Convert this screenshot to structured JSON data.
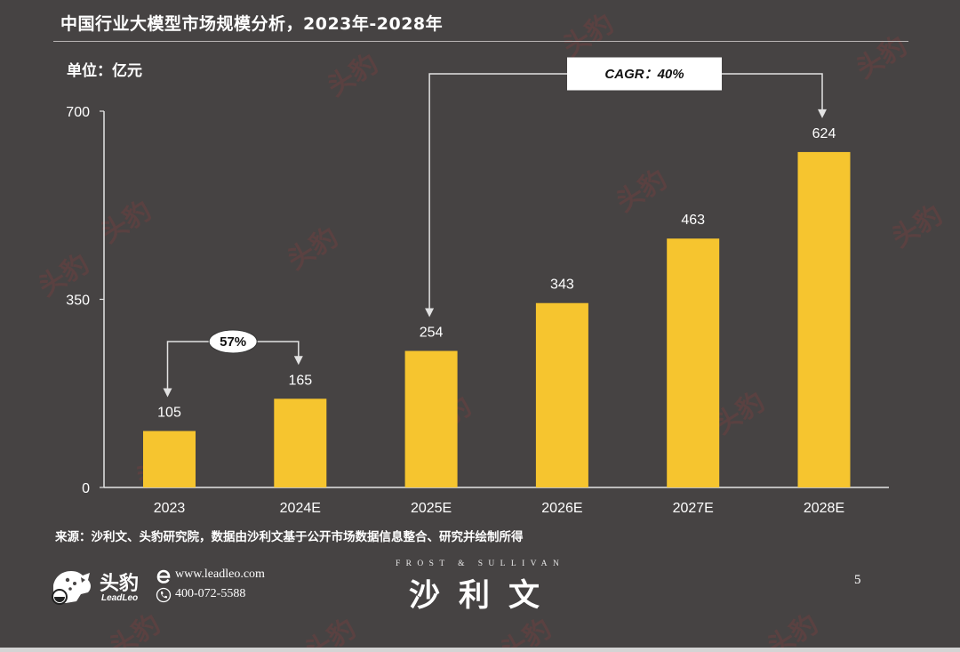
{
  "colors": {
    "background": "#464343",
    "bar": "#F6C52F",
    "text": "#FFFFFF",
    "annotation_line": "#E2E2E2",
    "annotation_box": "#FFFFFF"
  },
  "chart_data": {
    "type": "bar",
    "title": "中国行业大模型市场规模分析，2023年-2028年",
    "xlabel": "",
    "ylabel": "单位：亿元",
    "categories": [
      "2023",
      "2024E",
      "2025E",
      "2026E",
      "2027E",
      "2028E"
    ],
    "values": [
      105,
      165,
      254,
      343,
      463,
      624
    ],
    "ylim": [
      0,
      700
    ],
    "yticks": [
      0,
      350,
      700
    ],
    "grid": false,
    "legend": "none",
    "annotations": [
      {
        "label": "57%",
        "from": "2023",
        "to": "2024E"
      },
      {
        "label": "CAGR：40%",
        "from": "2025E",
        "to": "2028E"
      }
    ]
  },
  "source": "来源：沙利文、头豹研究院，数据由沙利文基于公开市场数据信息整合、研究并绘制所得",
  "footer": {
    "logo_name": "头豹",
    "logo_sub": "LeadLeo",
    "website": "www.leadleo.com",
    "phone": "400-072-5588",
    "partner_en": "FROST & SULLIVAN",
    "partner_cn": "沙利文",
    "page_number": "5",
    "icons": [
      "leadleo-logo-icon",
      "web-e-icon",
      "phone-icon"
    ]
  },
  "watermark": {
    "text": "头豹"
  }
}
